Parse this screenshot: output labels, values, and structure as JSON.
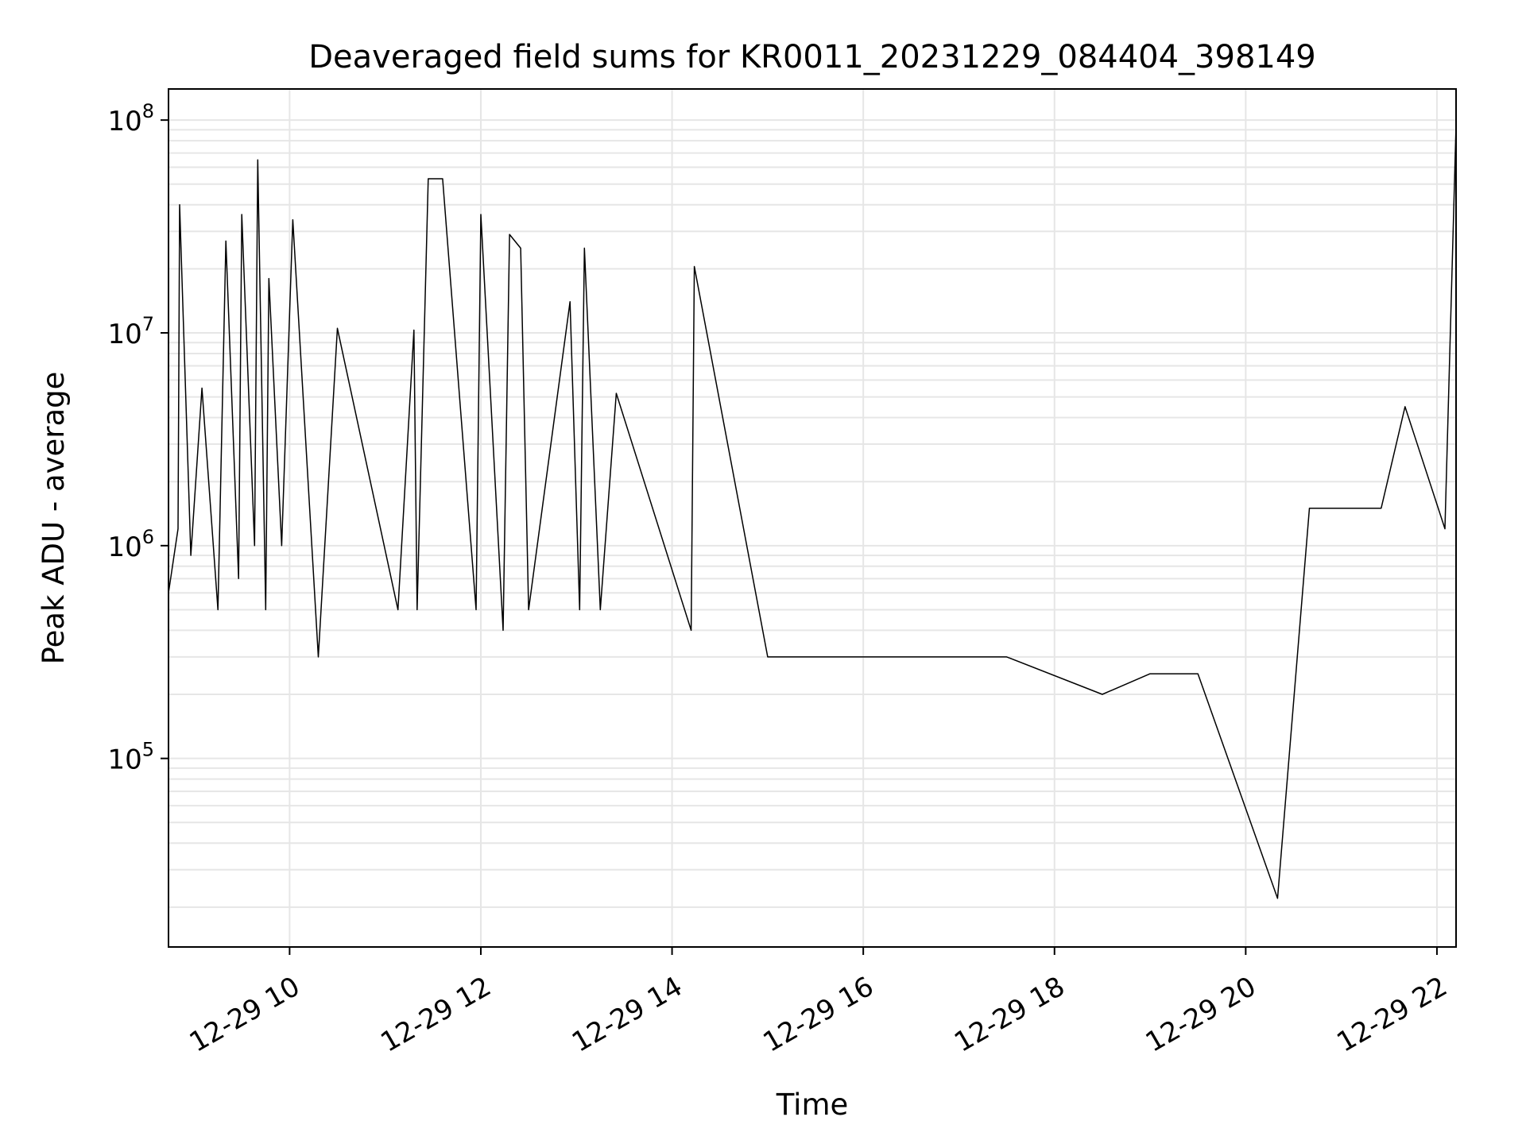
{
  "chart_data": {
    "type": "line",
    "title": "Deaveraged field sums for KR0011_20231229_084404_398149",
    "xlabel": "Time",
    "ylabel": "Peak ADU - average",
    "yscale": "log",
    "ylim": [
      13000,
      140000000
    ],
    "xlim": [
      "2023-12-29 08:44",
      "2023-12-29 22:12"
    ],
    "x_ticks": [
      {
        "value": "2023-12-29 10:00",
        "label": "12-29 10"
      },
      {
        "value": "2023-12-29 12:00",
        "label": "12-29 12"
      },
      {
        "value": "2023-12-29 14:00",
        "label": "12-29 14"
      },
      {
        "value": "2023-12-29 16:00",
        "label": "12-29 16"
      },
      {
        "value": "2023-12-29 18:00",
        "label": "12-29 18"
      },
      {
        "value": "2023-12-29 20:00",
        "label": "12-29 20"
      },
      {
        "value": "2023-12-29 22:00",
        "label": "12-29 22"
      }
    ],
    "y_ticks": [
      {
        "value": 100000,
        "base": "10",
        "exp": "5"
      },
      {
        "value": 1000000,
        "base": "10",
        "exp": "6"
      },
      {
        "value": 10000000,
        "base": "10",
        "exp": "7"
      },
      {
        "value": 100000000,
        "base": "10",
        "exp": "8"
      }
    ],
    "grid": "major and minor",
    "line_color": "#000000",
    "grid_color": "#e6e6e6",
    "series": [
      {
        "x": [
          "2023-12-29 08:44",
          "2023-12-29 08:50",
          "2023-12-29 08:51",
          "2023-12-29 08:58",
          "2023-12-29 09:05",
          "2023-12-29 09:15",
          "2023-12-29 09:20",
          "2023-12-29 09:28",
          "2023-12-29 09:30",
          "2023-12-29 09:38",
          "2023-12-29 09:40",
          "2023-12-29 09:45",
          "2023-12-29 09:47",
          "2023-12-29 09:55",
          "2023-12-29 10:02",
          "2023-12-29 10:18",
          "2023-12-29 10:30",
          "2023-12-29 11:08",
          "2023-12-29 11:18",
          "2023-12-29 11:20",
          "2023-12-29 11:27",
          "2023-12-29 11:36",
          "2023-12-29 11:57",
          "2023-12-29 12:00",
          "2023-12-29 12:14",
          "2023-12-29 12:18",
          "2023-12-29 12:25",
          "2023-12-29 12:30",
          "2023-12-29 12:56",
          "2023-12-29 13:02",
          "2023-12-29 13:05",
          "2023-12-29 13:15",
          "2023-12-29 13:25",
          "2023-12-29 14:12",
          "2023-12-29 14:14",
          "2023-12-29 15:00",
          "2023-12-29 16:00",
          "2023-12-29 17:30",
          "2023-12-29 18:30",
          "2023-12-29 19:00",
          "2023-12-29 19:30",
          "2023-12-29 20:20",
          "2023-12-29 20:40",
          "2023-12-29 21:00",
          "2023-12-29 21:25",
          "2023-12-29 21:40",
          "2023-12-29 22:05",
          "2023-12-29 22:12"
        ],
        "y": [
          600000,
          1200000,
          40000000,
          900000,
          5500000,
          500000,
          27000000,
          700000,
          36000000,
          1000000,
          65000000,
          500000,
          18000000,
          1000000,
          34000000,
          300000,
          10500000,
          500000,
          10300000,
          500000,
          53000000,
          53000000,
          500000,
          36000000,
          400000,
          29000000,
          25000000,
          500000,
          14000000,
          500000,
          25000000,
          500000,
          5200000,
          400000,
          20500000,
          300000,
          300000,
          300000,
          200000,
          250000,
          250000,
          22000,
          1500000,
          1500000,
          1500000,
          4500000,
          1200000,
          95000000
        ]
      }
    ]
  }
}
